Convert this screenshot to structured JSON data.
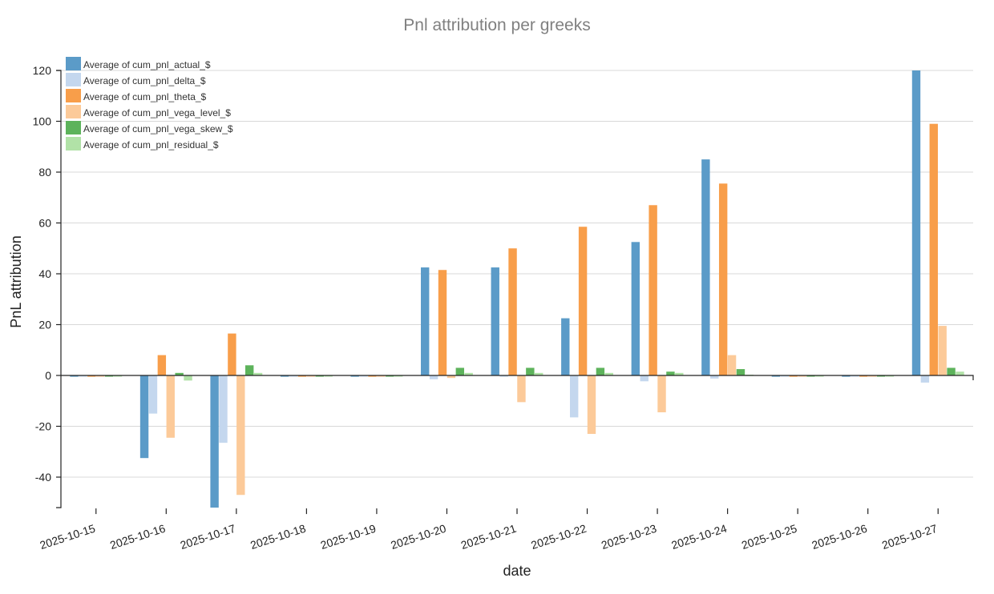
{
  "chart_data": {
    "type": "bar",
    "title": "Pnl attribution per greeks",
    "xlabel": "date",
    "ylabel": "PnL attribution",
    "ylim": [
      -52,
      120
    ],
    "y_ticks": [
      -40,
      -20,
      0,
      20,
      40,
      60,
      80,
      100,
      120
    ],
    "grid": true,
    "legend_position": "top-left",
    "categories": [
      "2025-10-15",
      "2025-10-16",
      "2025-10-17",
      "2025-10-18",
      "2025-10-19",
      "2025-10-20",
      "2025-10-21",
      "2025-10-22",
      "2025-10-23",
      "2025-10-24",
      "2025-10-25",
      "2025-10-26",
      "2025-10-27"
    ],
    "series": [
      {
        "name": "Average of cum_pnl_actual_$",
        "color": "#5b9bc8",
        "values": [
          -0.5,
          -32.5,
          -52,
          -0.5,
          -0.5,
          42.5,
          42.5,
          22.5,
          52.5,
          85,
          -0.5,
          -0.5,
          120
        ]
      },
      {
        "name": "Average of cum_pnl_delta_$",
        "color": "#c4d7ee",
        "values": [
          -0.3,
          -15,
          -26.5,
          -0.3,
          -0.3,
          -1.5,
          -0.5,
          -16.5,
          -2.3,
          -1.2,
          -0.3,
          -0.3,
          -2.8
        ]
      },
      {
        "name": "Average of cum_pnl_theta_$",
        "color": "#f89e4a",
        "values": [
          -0.5,
          8,
          16.5,
          -0.5,
          -0.5,
          41.5,
          50,
          58.5,
          67,
          75.5,
          -0.5,
          -0.5,
          99
        ]
      },
      {
        "name": "Average of cum_pnl_vega_level_$",
        "color": "#fcca99",
        "values": [
          -0.5,
          -24.5,
          -47,
          -0.5,
          -0.5,
          -1,
          -10.5,
          -23,
          -14.5,
          8,
          -0.5,
          -0.5,
          19.5
        ]
      },
      {
        "name": "Average of cum_pnl_vega_skew_$",
        "color": "#5db35b",
        "values": [
          -0.3,
          1,
          4,
          -0.3,
          -0.3,
          3,
          3,
          3,
          1.5,
          2.5,
          -0.3,
          -0.3,
          3
        ]
      },
      {
        "name": "Average of cum_pnl_residual_$",
        "color": "#b1e2a7",
        "values": [
          -0.2,
          -2,
          1,
          -0.2,
          -0.2,
          1,
          1,
          1,
          1,
          0.3,
          -0.2,
          -0.2,
          1.5
        ]
      }
    ]
  }
}
